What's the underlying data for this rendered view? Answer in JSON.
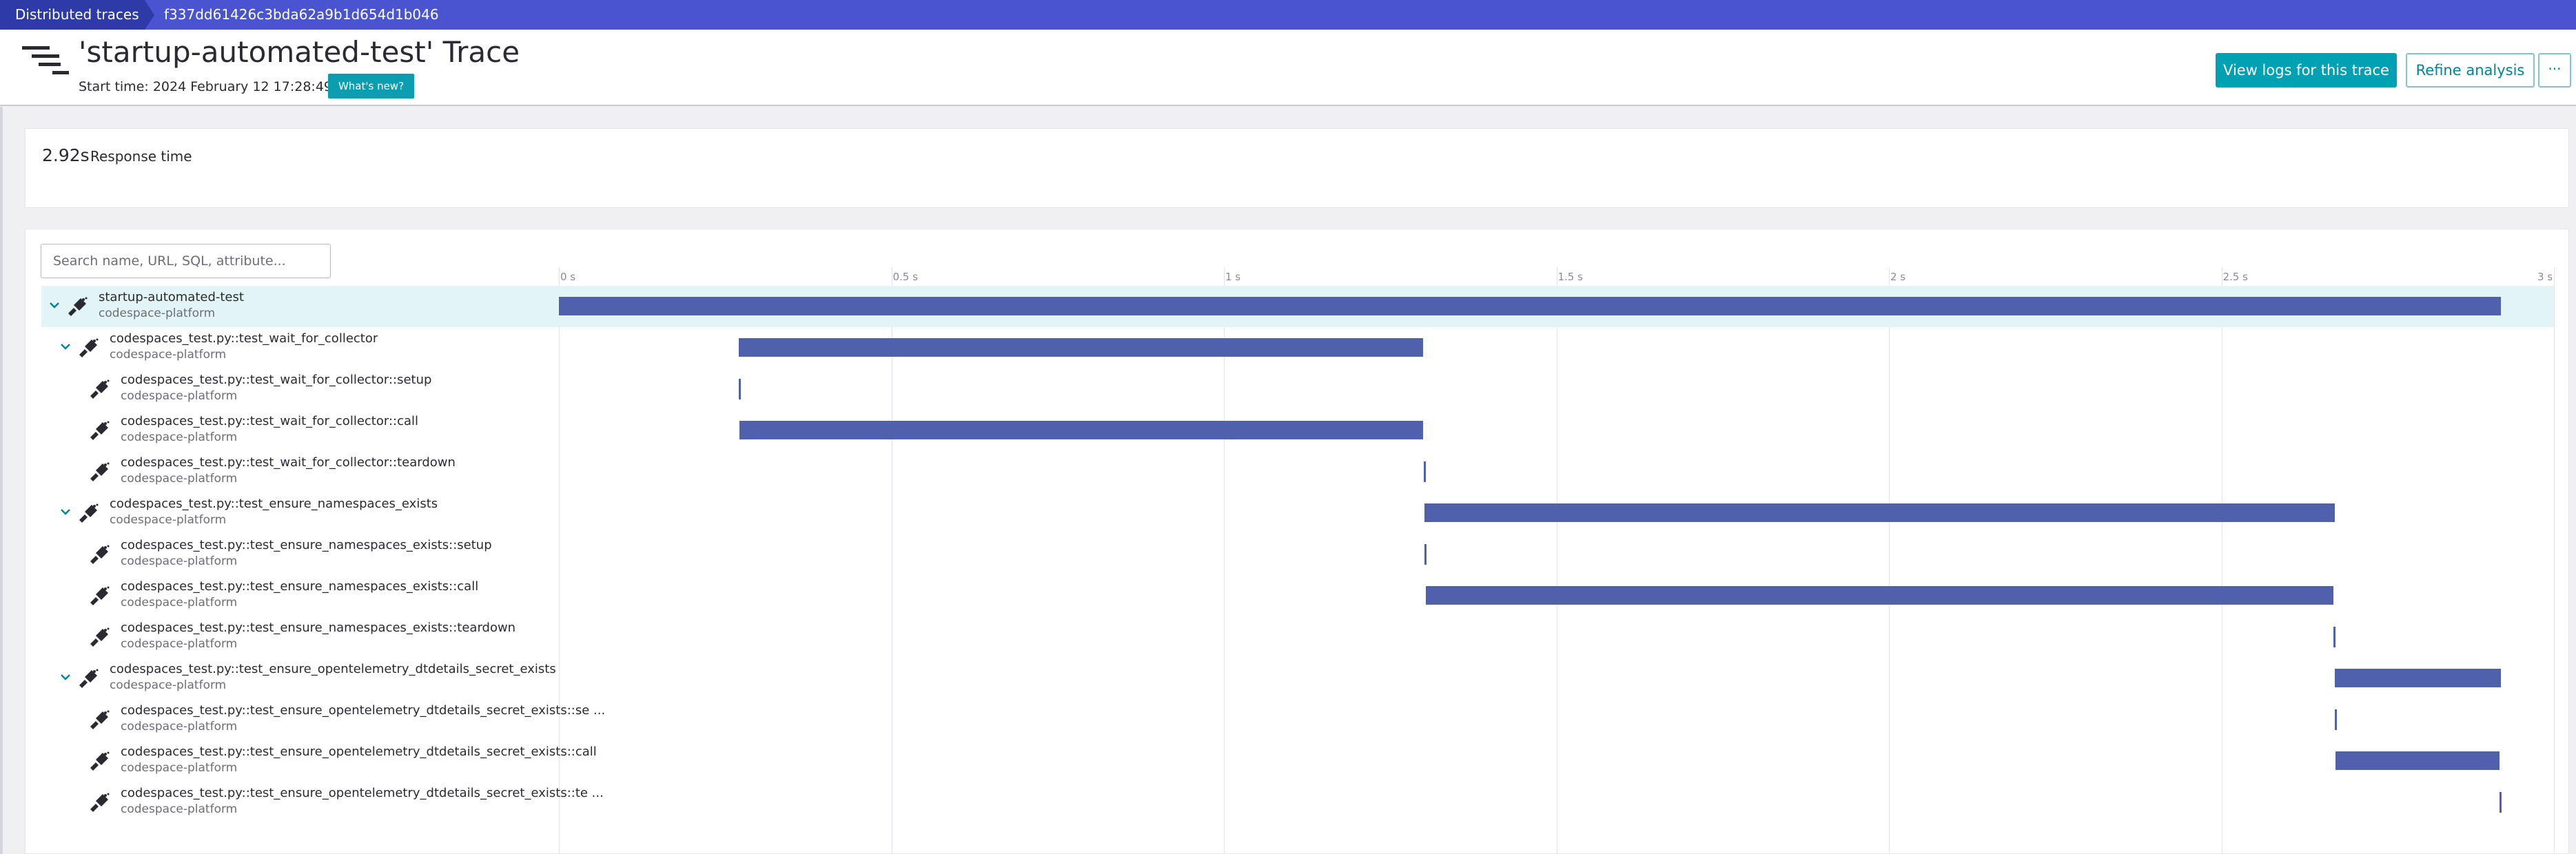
{
  "breadcrumbs": {
    "root": "Distributed traces",
    "current": "f337dd61426c3bda62a9b1d654d1b046"
  },
  "header": {
    "title": "'startup-automated-test' Trace",
    "start_time": "Start time: 2024 February 12 17:28:49",
    "whats_new": "What's new?",
    "view_logs": "View logs for this trace",
    "refine": "Refine analysis",
    "more": "···"
  },
  "summary": {
    "response_time_value": "2.92s",
    "response_time_label": "Response time"
  },
  "search": {
    "placeholder": "Search name, URL, SQL, attribute..."
  },
  "timeline": {
    "max_seconds": 3,
    "ticks": [
      "0 s",
      "0.5 s",
      "1 s",
      "1.5 s",
      "2 s",
      "2.5 s",
      "3 s"
    ],
    "bar_color": "#4f60ad"
  },
  "spans": [
    {
      "name": "startup-automated-test",
      "service": "codespace-platform",
      "depth": 0,
      "expandable": true,
      "selected": true,
      "start_s": 0.0,
      "end_s": 2.92
    },
    {
      "name": "codespaces_test.py::test_wait_for_collector",
      "service": "codespace-platform",
      "depth": 1,
      "expandable": true,
      "start_s": 0.27,
      "end_s": 1.3
    },
    {
      "name": "codespaces_test.py::test_wait_for_collector::setup",
      "service": "codespace-platform",
      "depth": 2,
      "expandable": false,
      "start_s": 0.27,
      "end_s": 0.272
    },
    {
      "name": "codespaces_test.py::test_wait_for_collector::call",
      "service": "codespace-platform",
      "depth": 2,
      "expandable": false,
      "start_s": 0.272,
      "end_s": 1.3
    },
    {
      "name": "codespaces_test.py::test_wait_for_collector::teardown",
      "service": "codespace-platform",
      "depth": 2,
      "expandable": false,
      "start_s": 1.3,
      "end_s": 1.302
    },
    {
      "name": "codespaces_test.py::test_ensure_namespaces_exists",
      "service": "codespace-platform",
      "depth": 1,
      "expandable": true,
      "start_s": 1.302,
      "end_s": 2.67
    },
    {
      "name": "codespaces_test.py::test_ensure_namespaces_exists::setup",
      "service": "codespace-platform",
      "depth": 2,
      "expandable": false,
      "start_s": 1.302,
      "end_s": 1.304
    },
    {
      "name": "codespaces_test.py::test_ensure_namespaces_exists::call",
      "service": "codespace-platform",
      "depth": 2,
      "expandable": false,
      "start_s": 1.304,
      "end_s": 2.668
    },
    {
      "name": "codespaces_test.py::test_ensure_namespaces_exists::teardown",
      "service": "codespace-platform",
      "depth": 2,
      "expandable": false,
      "start_s": 2.668,
      "end_s": 2.67
    },
    {
      "name": "codespaces_test.py::test_ensure_opentelemetry_dtdetails_secret_exists",
      "service": "codespace-platform",
      "depth": 1,
      "expandable": true,
      "start_s": 2.67,
      "end_s": 2.92
    },
    {
      "name": "codespaces_test.py::test_ensure_opentelemetry_dtdetails_secret_exists::se ...",
      "service": "codespace-platform",
      "depth": 2,
      "expandable": false,
      "start_s": 2.67,
      "end_s": 2.672
    },
    {
      "name": "codespaces_test.py::test_ensure_opentelemetry_dtdetails_secret_exists::call",
      "service": "codespace-platform",
      "depth": 2,
      "expandable": false,
      "start_s": 2.672,
      "end_s": 2.918
    },
    {
      "name": "codespaces_test.py::test_ensure_opentelemetry_dtdetails_secret_exists::te ...",
      "service": "codespace-platform",
      "depth": 2,
      "expandable": false,
      "start_s": 2.918,
      "end_s": 2.92
    }
  ]
}
